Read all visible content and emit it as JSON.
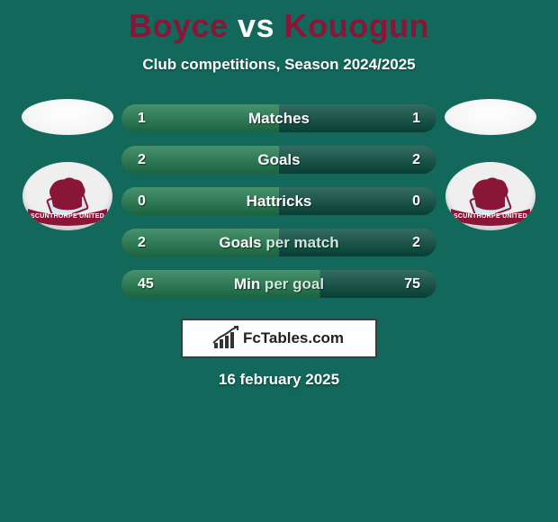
{
  "background_color": "#12685a",
  "title": {
    "player1": "Boyce",
    "vs": "vs",
    "player2": "Kouogun",
    "color_player": "#8a1637",
    "color_vs": "#ffffff",
    "fontsize": 36
  },
  "subtitle": {
    "text": "Club competitions, Season 2024/2025",
    "color": "#ffffff",
    "fontsize": 17
  },
  "left_side": {
    "photo_bg": "#f2f2f2",
    "badge": {
      "bg": "#efeff0",
      "accent": "#8a1637",
      "banner_text": "SCUNTHORPE UNITED"
    }
  },
  "right_side": {
    "photo_bg": "#f2f2f2",
    "badge": {
      "bg": "#efeff0",
      "accent": "#8a1637",
      "banner_text": "SCUNTHORPE UNITED"
    }
  },
  "bars": {
    "track_color": "#084c3f",
    "highlight_color": "#1f7a4d",
    "text_color": "#ffffff",
    "secondary_text_color": "#cfe7dd",
    "fontsize": 17,
    "radius": 16,
    "items": [
      {
        "label": "Matches",
        "left": "1",
        "right": "1",
        "left_frac": 0.5
      },
      {
        "label": "Goals",
        "left": "2",
        "right": "2",
        "left_frac": 0.5
      },
      {
        "label": "Hattricks",
        "left": "0",
        "right": "0",
        "left_frac": 0.5
      },
      {
        "label_main": "Goals",
        "label_secondary": "per match",
        "left": "2",
        "right": "2",
        "left_frac": 0.5
      },
      {
        "label_main": "Min",
        "label_secondary": "per goal",
        "left": "45",
        "right": "75",
        "left_frac": 0.625
      }
    ]
  },
  "brand": {
    "text": "FcTables.com",
    "box_border": "#3d3d3d",
    "box_bg": "#ffffff",
    "text_color": "#222222"
  },
  "date": {
    "text": "16 february 2025",
    "color": "#ffffff",
    "fontsize": 17
  }
}
